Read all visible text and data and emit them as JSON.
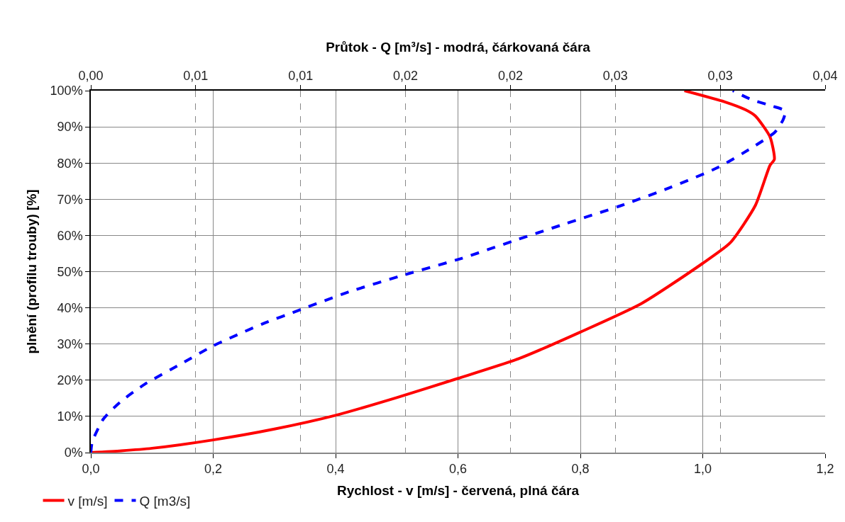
{
  "chart_data": {
    "type": "line",
    "xlabel": "Rychlost - v [m/s] - červená, plná čára",
    "x2label": "Průtok - Q [m³/s] - modrá, čárkovaná čára",
    "ylabel": "plnění (profilu trouby) [%]",
    "xlim": [
      0,
      1.2
    ],
    "xticks": [
      {
        "value": 0,
        "label": "0,0"
      },
      {
        "value": 0.2,
        "label": "0,2"
      },
      {
        "value": 0.4,
        "label": "0,4"
      },
      {
        "value": 0.6,
        "label": "0,6"
      },
      {
        "value": 0.8,
        "label": "0,8"
      },
      {
        "value": 1.0,
        "label": "1,0"
      },
      {
        "value": 1.2,
        "label": "1,2"
      }
    ],
    "x2lim": [
      0,
      0.035
    ],
    "x2ticks": [
      {
        "value": 0,
        "label": "0,00"
      },
      {
        "value": 0.005,
        "label": "0,01"
      },
      {
        "value": 0.01,
        "label": "0,01"
      },
      {
        "value": 0.015,
        "label": "0,02"
      },
      {
        "value": 0.02,
        "label": "0,02"
      },
      {
        "value": 0.025,
        "label": "0,03"
      },
      {
        "value": 0.03,
        "label": "0,03"
      },
      {
        "value": 0.035,
        "label": "0,04"
      }
    ],
    "ylim": [
      0,
      100
    ],
    "yticks": [
      {
        "value": 0,
        "label": "0%"
      },
      {
        "value": 10,
        "label": "10%"
      },
      {
        "value": 20,
        "label": "20%"
      },
      {
        "value": 30,
        "label": "30%"
      },
      {
        "value": 40,
        "label": "40%"
      },
      {
        "value": 50,
        "label": "50%"
      },
      {
        "value": 60,
        "label": "60%"
      },
      {
        "value": 70,
        "label": "70%"
      },
      {
        "value": 80,
        "label": "80%"
      },
      {
        "value": 90,
        "label": "90%"
      },
      {
        "value": 100,
        "label": "100%"
      }
    ],
    "grid": true,
    "legend": "bottom left",
    "marker": "none",
    "series": [
      {
        "name": "v [m/s]",
        "color": "#ff0000",
        "line_style": "solid",
        "x": [
          0,
          0.05,
          0.1,
          0.2,
          0.3,
          0.4,
          0.5,
          0.6,
          0.7,
          0.8,
          0.9,
          1.0,
          1.045,
          1.086,
          1.11,
          1.117,
          1.11,
          1.086,
          1.07,
          1.036,
          0.97
        ],
        "values": [
          0,
          0.5,
          1.2,
          3.5,
          6.5,
          10.3,
          15.2,
          20.5,
          26,
          33.3,
          41.2,
          52.3,
          58,
          68.3,
          79.4,
          81,
          87.2,
          93,
          94.7,
          96.9,
          100
        ]
      },
      {
        "name": "Q [m3/s]",
        "color": "#0000ff",
        "line_style": "dashed",
        "axis": "x2",
        "x": [
          0,
          7e-05,
          0.0006,
          0.00145,
          0.0026,
          0.0043,
          0.0058,
          0.0082,
          0.01,
          0.0123,
          0.015,
          0.0177,
          0.0201,
          0.0226,
          0.0252,
          0.0276,
          0.0299,
          0.0315,
          0.0326,
          0.033,
          0.0331,
          0.0325,
          0.0315,
          0.0306
        ],
        "values": [
          0,
          3,
          9.3,
          14.2,
          19,
          24.5,
          29.4,
          35.6,
          39.5,
          44.4,
          49.2,
          53.7,
          58.4,
          63.2,
          68.1,
          73.2,
          78.8,
          84.2,
          88.5,
          92,
          94.4,
          95.7,
          97.5,
          100
        ]
      }
    ]
  }
}
